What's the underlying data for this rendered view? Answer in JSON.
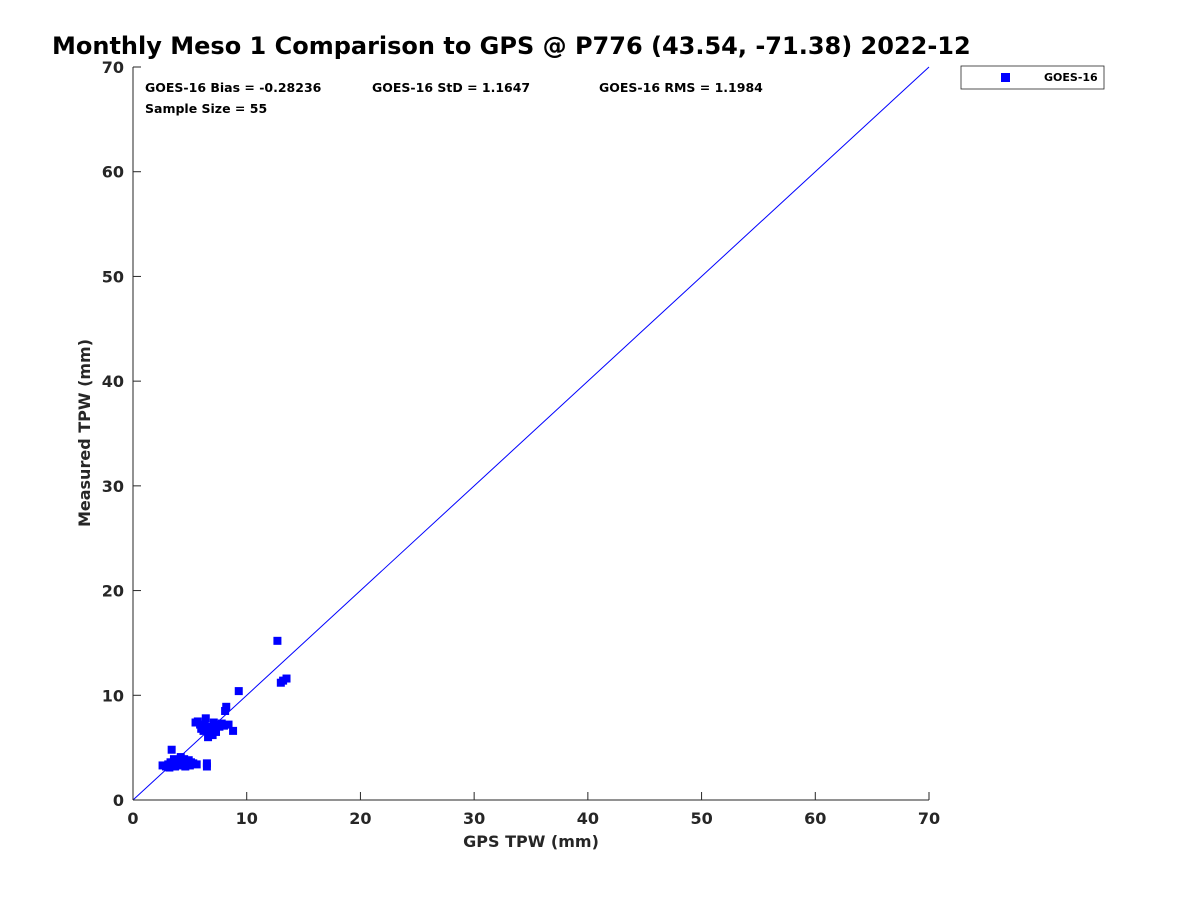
{
  "chart_data": {
    "type": "scatter",
    "title": "Monthly Meso 1 Comparison to GPS @ P776 (43.54, -71.38) 2022-12",
    "xlabel": "GPS TPW (mm)",
    "ylabel": "Measured TPW (mm)",
    "xlim": [
      0,
      70
    ],
    "ylim": [
      0,
      70
    ],
    "xticks": [
      0,
      10,
      20,
      30,
      40,
      50,
      60,
      70
    ],
    "yticks": [
      0,
      10,
      20,
      30,
      40,
      50,
      60,
      70
    ],
    "grid": false,
    "legend_position": "top-right-outside",
    "stats": {
      "bias": "GOES-16 Bias = -0.28236",
      "std": "GOES-16 StD = 1.1647",
      "rms": "GOES-16 RMS = 1.1984",
      "sample": "Sample Size = 55"
    },
    "reference_line": {
      "x": [
        0,
        70
      ],
      "y": [
        0,
        70
      ],
      "color": "#0000ff"
    },
    "series": [
      {
        "name": "GOES-16",
        "color": "#0000ff",
        "marker": "square",
        "points": [
          [
            2.6,
            3.3
          ],
          [
            2.9,
            3.2
          ],
          [
            3.1,
            3.4
          ],
          [
            3.2,
            3.1
          ],
          [
            3.3,
            3.6
          ],
          [
            3.4,
            4.8
          ],
          [
            3.5,
            3.3
          ],
          [
            3.6,
            3.9
          ],
          [
            3.7,
            3.2
          ],
          [
            3.8,
            3.6
          ],
          [
            3.9,
            3.4
          ],
          [
            4.0,
            3.8
          ],
          [
            4.1,
            3.5
          ],
          [
            4.2,
            4.1
          ],
          [
            4.3,
            3.7
          ],
          [
            4.4,
            3.3
          ],
          [
            4.5,
            3.9
          ],
          [
            4.6,
            3.2
          ],
          [
            4.7,
            3.6
          ],
          [
            4.8,
            3.4
          ],
          [
            4.9,
            3.8
          ],
          [
            5.0,
            3.3
          ],
          [
            5.1,
            3.6
          ],
          [
            5.3,
            3.5
          ],
          [
            5.6,
            3.4
          ],
          [
            5.5,
            7.4
          ],
          [
            5.7,
            7.5
          ],
          [
            5.9,
            7.2
          ],
          [
            6.0,
            6.8
          ],
          [
            6.2,
            6.6
          ],
          [
            6.3,
            7.1
          ],
          [
            6.4,
            7.8
          ],
          [
            6.5,
            3.2
          ],
          [
            6.5,
            3.5
          ],
          [
            6.6,
            6.0
          ],
          [
            6.7,
            6.7
          ],
          [
            6.8,
            6.4
          ],
          [
            6.9,
            7.0
          ],
          [
            7.0,
            6.2
          ],
          [
            7.1,
            7.4
          ],
          [
            7.2,
            6.9
          ],
          [
            7.3,
            6.5
          ],
          [
            7.4,
            7.2
          ],
          [
            7.6,
            7.0
          ],
          [
            7.8,
            7.3
          ],
          [
            8.0,
            7.1
          ],
          [
            8.1,
            8.5
          ],
          [
            8.2,
            8.9
          ],
          [
            8.4,
            7.2
          ],
          [
            8.8,
            6.6
          ],
          [
            9.3,
            10.4
          ],
          [
            12.7,
            15.2
          ],
          [
            13.0,
            11.2
          ],
          [
            13.2,
            11.4
          ],
          [
            13.5,
            11.6
          ]
        ]
      }
    ]
  }
}
